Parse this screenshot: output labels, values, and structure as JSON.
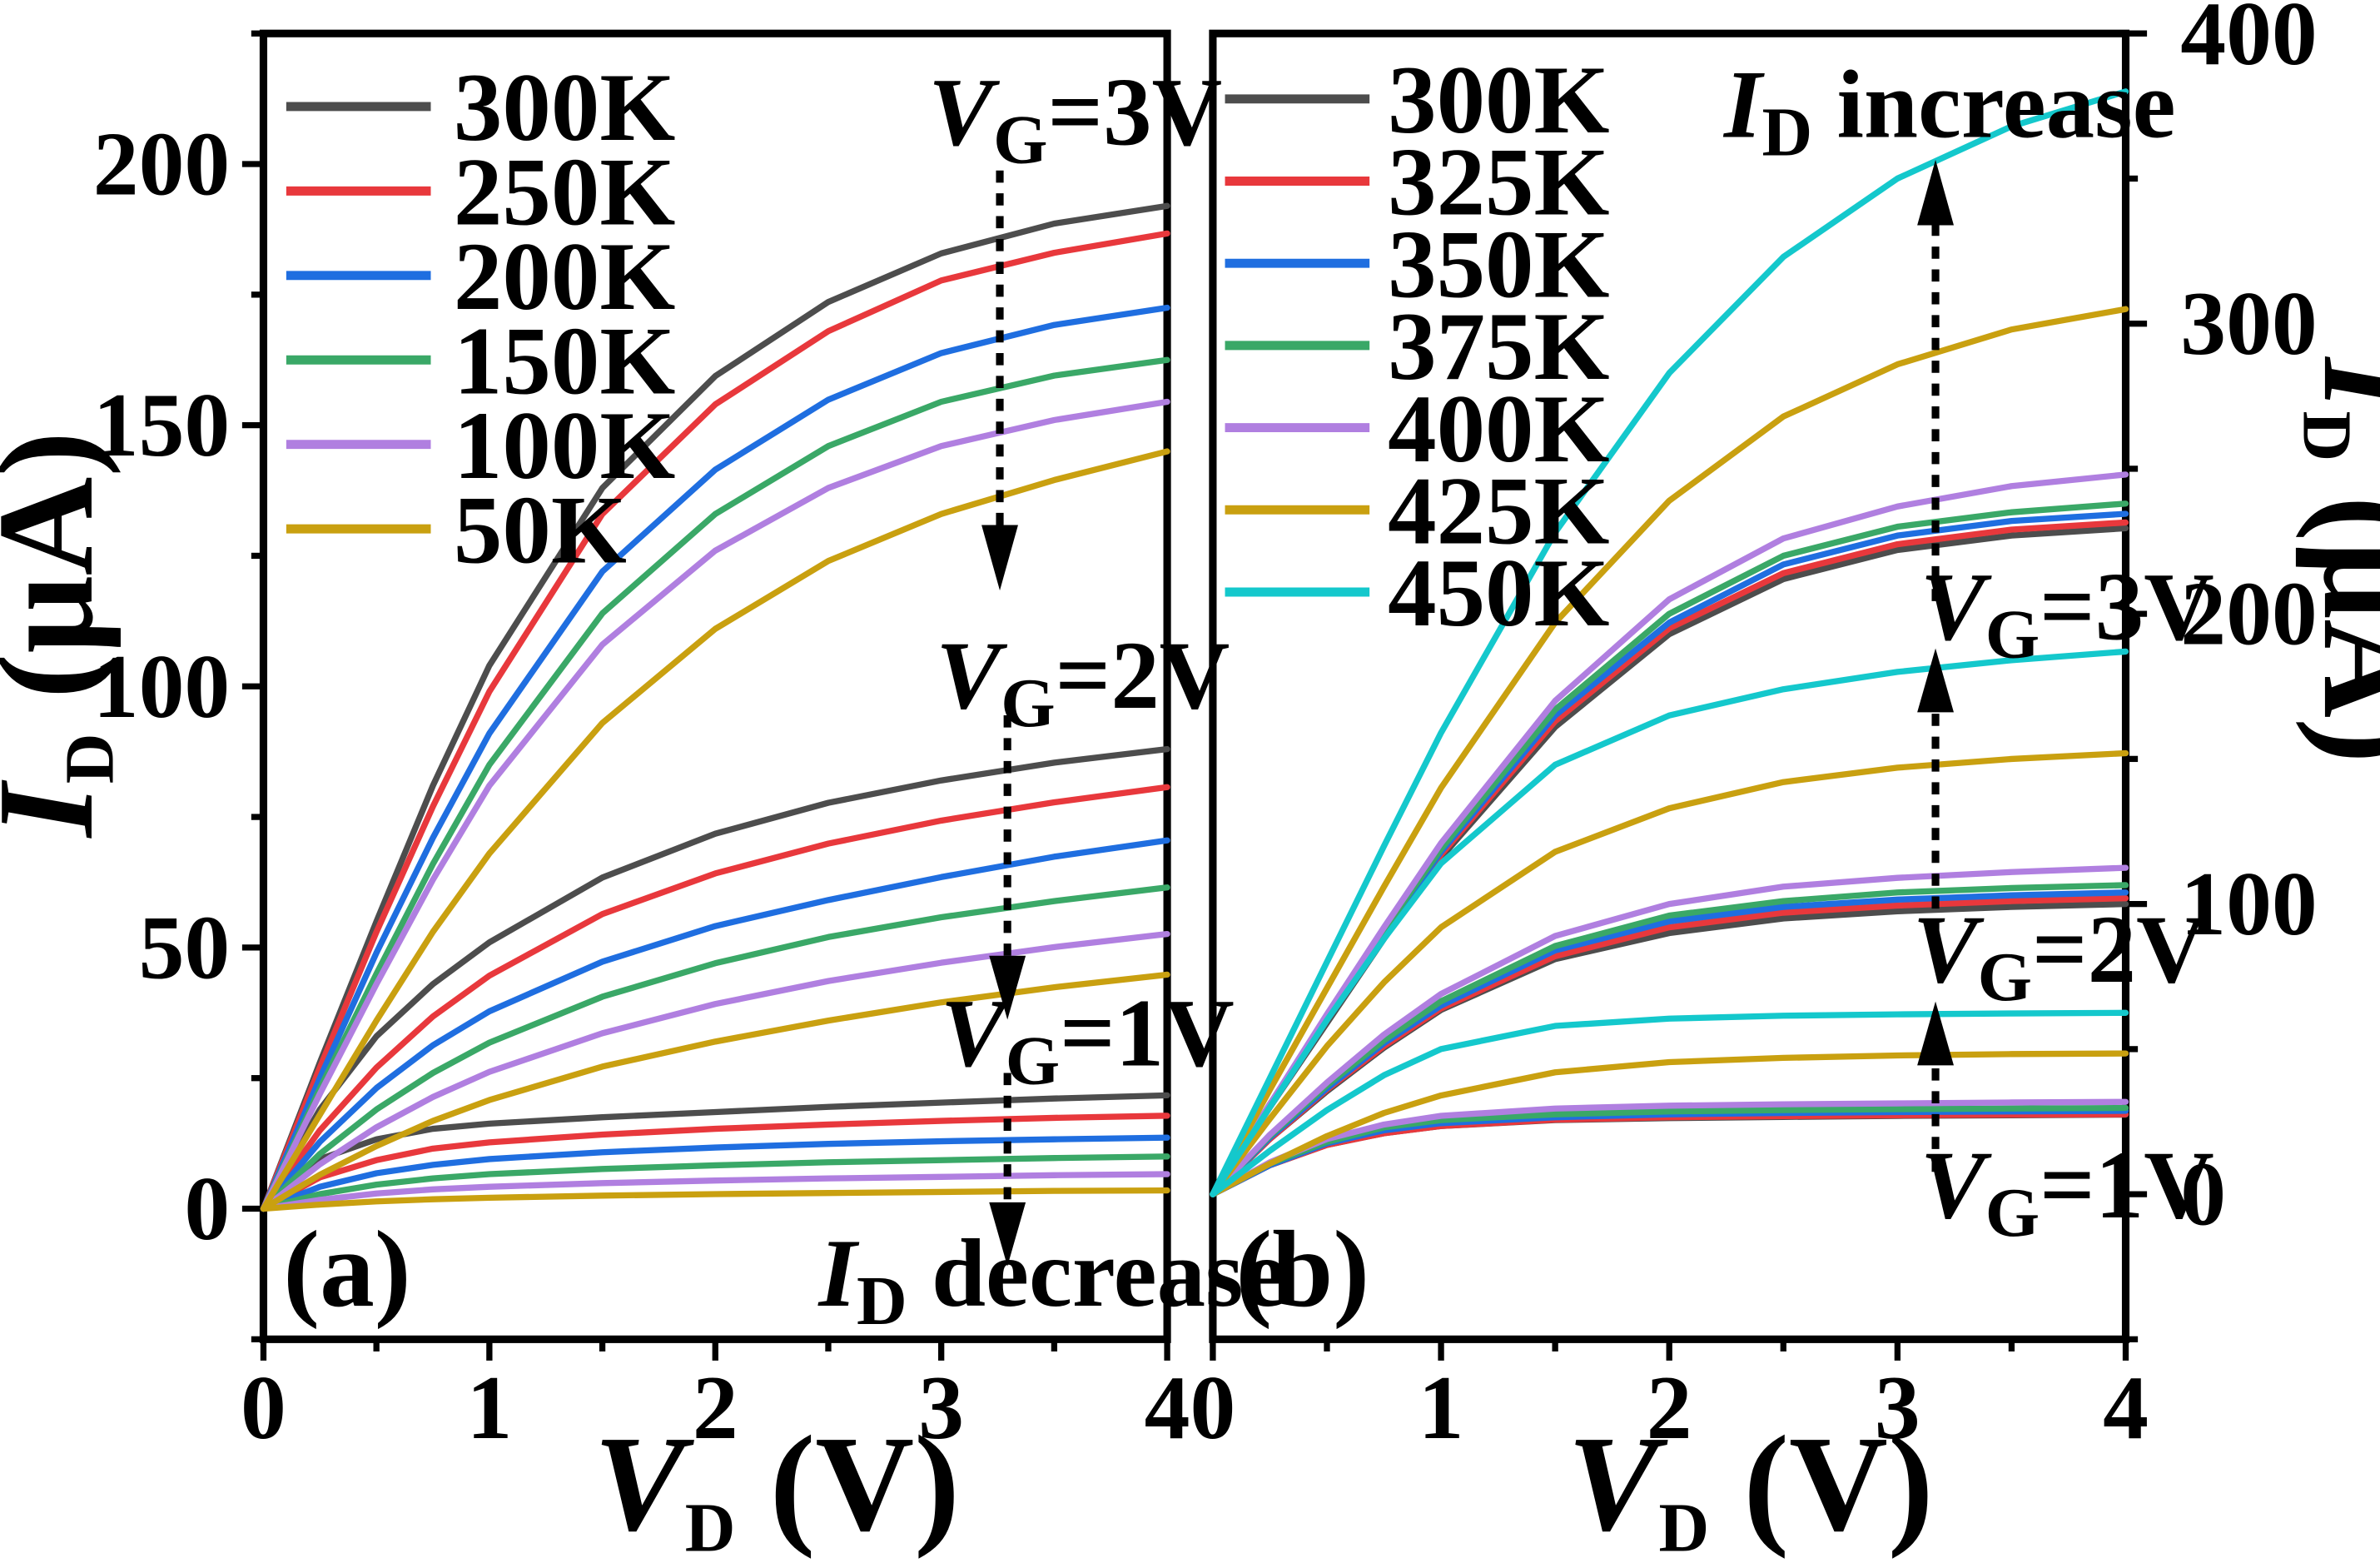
{
  "chart_data": [
    {
      "type": "line",
      "panel_label": "(a)",
      "xlabel": {
        "main": "V",
        "sub": "D",
        "unit": " (V)"
      },
      "ylabel": {
        "main": "I",
        "sub": "D",
        "unit": " (μA)"
      },
      "xlim": [
        0,
        4
      ],
      "ylim": [
        -25,
        225
      ],
      "xticks": [
        0,
        1,
        2,
        3,
        4
      ],
      "yticks": [
        0,
        50,
        100,
        150,
        200
      ],
      "y_axis_side": "left",
      "x": [
        0,
        0.25,
        0.5,
        0.75,
        1,
        1.5,
        2,
        2.5,
        3,
        3.5,
        4
      ],
      "series": [
        {
          "name": "300K",
          "color": "#4d4d4d",
          "groups": [
            {
              "vg": "1V",
              "y": [
                0,
                9.5,
                13.3,
                15.3,
                16.3,
                17.5,
                18.5,
                19.5,
                20.3,
                21.1,
                21.7
              ]
            },
            {
              "vg": "2V",
              "y": [
                0,
                19,
                33,
                43,
                51,
                63.4,
                71.8,
                77.7,
                82,
                85.4,
                88
              ]
            },
            {
              "vg": "3V",
              "y": [
                0,
                28,
                55,
                81,
                104,
                138,
                159.4,
                173.6,
                182.9,
                188.6,
                192
              ]
            }
          ]
        },
        {
          "name": "250K",
          "color": "#e8383c",
          "groups": [
            {
              "vg": "1V",
              "y": [
                0,
                6,
                9.3,
                11.5,
                12.7,
                14.2,
                15.3,
                16.1,
                16.8,
                17.4,
                17.8
              ]
            },
            {
              "vg": "2V",
              "y": [
                0,
                15,
                27,
                36.8,
                44.6,
                56.4,
                64.2,
                69.9,
                74.3,
                77.8,
                80.7
              ]
            },
            {
              "vg": "3V",
              "y": [
                0,
                27,
                53,
                77,
                99,
                133,
                154,
                168,
                177.7,
                183,
                186.7
              ]
            }
          ]
        },
        {
          "name": "200K",
          "color": "#1f6ee0",
          "groups": [
            {
              "vg": "1V",
              "y": [
                0,
                4.2,
                6.8,
                8.4,
                9.5,
                10.8,
                11.7,
                12.4,
                12.9,
                13.3,
                13.6
              ]
            },
            {
              "vg": "2V",
              "y": [
                0,
                12.8,
                23.1,
                31.3,
                37.8,
                47.3,
                54.1,
                59.1,
                63.5,
                67.4,
                70.5
              ]
            },
            {
              "vg": "3V",
              "y": [
                0,
                25,
                49,
                71,
                91,
                122,
                141.5,
                154.9,
                163.8,
                169.2,
                172.5
              ]
            }
          ]
        },
        {
          "name": "150K",
          "color": "#3aa867",
          "groups": [
            {
              "vg": "1V",
              "y": [
                0,
                2.8,
                4.6,
                5.8,
                6.6,
                7.6,
                8.3,
                8.9,
                9.3,
                9.7,
                10.0
              ]
            },
            {
              "vg": "2V",
              "y": [
                0,
                10.5,
                19,
                26,
                31.8,
                40.6,
                47,
                52,
                55.8,
                58.9,
                61.5
              ]
            },
            {
              "vg": "3V",
              "y": [
                0,
                23,
                45,
                66,
                85,
                114,
                133,
                146,
                154.5,
                159.5,
                162.5
              ]
            }
          ]
        },
        {
          "name": "100K",
          "color": "#b07fe0",
          "groups": [
            {
              "vg": "1V",
              "y": [
                0,
                1.7,
                2.9,
                3.7,
                4.2,
                4.9,
                5.4,
                5.8,
                6.1,
                6.4,
                6.6
              ]
            },
            {
              "vg": "2V",
              "y": [
                0,
                8.5,
                15.6,
                21.4,
                26.2,
                33.6,
                39.2,
                43.6,
                47.1,
                50.1,
                52.6
              ]
            },
            {
              "vg": "3V",
              "y": [
                0,
                22,
                43,
                63,
                81,
                108,
                126,
                138,
                146,
                151,
                154.5
              ]
            }
          ]
        },
        {
          "name": "50K",
          "color": "#c9a010",
          "groups": [
            {
              "vg": "1V",
              "y": [
                0,
                0.8,
                1.4,
                1.8,
                2.1,
                2.5,
                2.8,
                3.0,
                3.2,
                3.4,
                3.5
              ]
            },
            {
              "vg": "2V",
              "y": [
                0,
                6.5,
                12,
                16.8,
                20.8,
                27.2,
                32,
                36,
                39.5,
                42.4,
                44.8
              ]
            },
            {
              "vg": "3V",
              "y": [
                0,
                18,
                36,
                53,
                68,
                93,
                111,
                124,
                133,
                139.5,
                145
              ]
            }
          ]
        }
      ],
      "annotations": {
        "vg3": "=3V",
        "vg2": "=2V",
        "vg1": "=1V",
        "trend": " decrease"
      }
    },
    {
      "type": "line",
      "panel_label": "(b)",
      "xlabel": {
        "main": "V",
        "sub": "D",
        "unit": " (V)"
      },
      "ylabel": {
        "main": "I",
        "sub": "D",
        "unit": " (μA)"
      },
      "xlim": [
        0,
        4
      ],
      "ylim": [
        -50,
        400
      ],
      "xticks": [
        0,
        1,
        2,
        3,
        4
      ],
      "yticks": [
        0,
        100,
        200,
        300,
        400
      ],
      "y_axis_side": "right",
      "x": [
        0,
        0.25,
        0.5,
        0.75,
        1,
        1.5,
        2,
        2.5,
        3,
        3.5,
        4
      ],
      "series": [
        {
          "name": "300K",
          "color": "#4d4d4d",
          "groups": [
            {
              "vg": "1V",
              "y": [
                0,
                10,
                17,
                21,
                23.5,
                25.5,
                26.2,
                26.6,
                27,
                27.2,
                27.4
              ]
            },
            {
              "vg": "2V",
              "y": [
                0,
                19,
                35.5,
                50.5,
                63.5,
                81,
                90,
                95,
                97.5,
                99,
                100
              ]
            },
            {
              "vg": "3V",
              "y": [
                0,
                30,
                59,
                88,
                116,
                161,
                193,
                212,
                222,
                227,
                229.5
              ]
            }
          ]
        },
        {
          "name": "325K",
          "color": "#e8383c",
          "groups": [
            {
              "vg": "1V",
              "y": [
                0,
                10,
                17,
                21,
                23.5,
                25.7,
                26.5,
                26.9,
                27.2,
                27.4,
                27.5
              ]
            },
            {
              "vg": "2V",
              "y": [
                0,
                19,
                36,
                51,
                64,
                82,
                92,
                97,
                99.5,
                101,
                102
              ]
            },
            {
              "vg": "3V",
              "y": [
                0,
                30,
                60,
                89,
                117,
                163,
                195,
                214,
                224,
                229,
                231.5
              ]
            }
          ]
        },
        {
          "name": "350K",
          "color": "#1f6ee0",
          "groups": [
            {
              "vg": "1V",
              "y": [
                0,
                10,
                17.5,
                22,
                24.5,
                26.5,
                27.5,
                28,
                28.3,
                28.5,
                28.7
              ]
            },
            {
              "vg": "2V",
              "y": [
                0,
                19.5,
                36.5,
                52,
                65,
                84,
                94,
                99,
                101.5,
                103,
                104
              ]
            },
            {
              "vg": "3V",
              "y": [
                0,
                31,
                61,
                90,
                118,
                165,
                197,
                217,
                227,
                232,
                234.5
              ]
            }
          ]
        },
        {
          "name": "375K",
          "color": "#3aa867",
          "groups": [
            {
              "vg": "1V",
              "y": [
                0,
                10.5,
                18,
                23,
                25.5,
                27.5,
                28.5,
                29,
                29.3,
                29.5,
                29.7
              ]
            },
            {
              "vg": "2V",
              "y": [
                0,
                20,
                37.5,
                53,
                66.5,
                85.5,
                96,
                101,
                104,
                105.5,
                106.5
              ]
            },
            {
              "vg": "3V",
              "y": [
                0,
                31,
                61,
                91,
                119,
                167,
                200,
                220,
                230,
                235,
                238
              ]
            }
          ]
        },
        {
          "name": "400K",
          "color": "#b07fe0",
          "groups": [
            {
              "vg": "1V",
              "y": [
                0,
                11,
                19,
                24,
                27,
                29.5,
                30.5,
                31,
                31.3,
                31.6,
                31.8
              ]
            },
            {
              "vg": "2V",
              "y": [
                0,
                20.5,
                38.5,
                55,
                69,
                89,
                100,
                106,
                109,
                111,
                112.5
              ]
            },
            {
              "vg": "3V",
              "y": [
                0,
                31,
                62,
                92,
                121,
                170,
                205,
                226,
                237,
                244,
                248
              ]
            }
          ]
        },
        {
          "name": "425K",
          "color": "#c9a010",
          "groups": [
            {
              "vg": "1V",
              "y": [
                0,
                10.5,
                20,
                28,
                34,
                42,
                45.5,
                47,
                47.8,
                48.3,
                48.5
              ]
            },
            {
              "vg": "2V",
              "y": [
                0,
                26,
                51,
                73,
                92,
                118,
                133,
                142,
                147,
                150,
                152
              ]
            },
            {
              "vg": "3V",
              "y": [
                0,
                36,
                71,
                106,
                140,
                197,
                239,
                268,
                286,
                298,
                305
              ]
            }
          ]
        },
        {
          "name": "450K",
          "color": "#14c8cc",
          "groups": [
            {
              "vg": "1V",
              "y": [
                0,
                15,
                29,
                41,
                50,
                58,
                60.5,
                61.5,
                62,
                62.3,
                62.5
              ]
            },
            {
              "vg": "2V",
              "y": [
                0,
                30,
                60,
                88,
                114,
                148,
                165,
                174,
                180,
                184,
                187
              ]
            },
            {
              "vg": "3V",
              "y": [
                0,
                40,
                80,
                120,
                159,
                228,
                283,
                323,
                350,
                368,
                380
              ]
            }
          ]
        }
      ],
      "annotations": {
        "vg3": "=3V",
        "vg2": "=2V",
        "vg1": "=1V",
        "trend": " increase"
      }
    }
  ]
}
